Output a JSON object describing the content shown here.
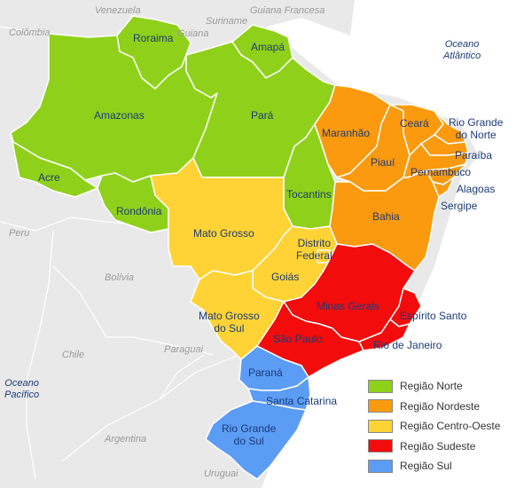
{
  "countries": {
    "venezuela": "Venezuela",
    "suriname": "Suriname",
    "guiana": "Guiana",
    "guiana_francesa": "Guiana Francesa",
    "colombia": "Colômbia",
    "peru": "Peru",
    "bolivia": "Bolívia",
    "chile": "Chile",
    "paraguai": "Paraguai",
    "argentina": "Argentina",
    "uruguai": "Uruguai"
  },
  "oceans": {
    "atlantico_line1": "Oceano",
    "atlantico_line2": "Atlântico",
    "pacifico_line1": "Oceano",
    "pacifico_line2": "Pacífico"
  },
  "states": {
    "roraima": "Roraima",
    "amapa": "Amapá",
    "amazonas": "Amazonas",
    "para": "Pará",
    "acre": "Acre",
    "rondonia": "Rondônia",
    "tocantins": "Tocantins",
    "maranhao": "Maranhão",
    "ceara": "Ceará",
    "rio_grande_do_norte_line1": "Rio Grande",
    "rio_grande_do_norte_line2": "do Norte",
    "piaui": "Piauí",
    "paraiba": "Paraíba",
    "pernambuco": "Pernambuco",
    "alagoas": "Alagoas",
    "sergipe": "Sergipe",
    "bahia": "Bahia",
    "mato_grosso": "Mato Grosso",
    "distrito_federal_line1": "Distrito",
    "distrito_federal_line2": "Federal",
    "goias": "Goiás",
    "mato_grosso_do_sul_line1": "Mato Grosso",
    "mato_grosso_do_sul_line2": "do Sul",
    "minas_gerais": "Minas Gerais",
    "espirito_santo": "Espírito Santo",
    "sao_paulo": "São Paulo",
    "rio_de_janeiro": "Rio de Janeiro",
    "parana": "Paraná",
    "santa_catarina": "Santa Catarina",
    "rio_grande_do_sul_line1": "Rio Grande",
    "rio_grande_do_sul_line2": "do Sul"
  },
  "legend": {
    "items": [
      {
        "label": "Região Norte",
        "color": "#8fd11a"
      },
      {
        "label": "Região Nordeste",
        "color": "#fb9a0e"
      },
      {
        "label": "Região Centro-Oeste",
        "color": "#ffd335"
      },
      {
        "label": "Região Sudeste",
        "color": "#f20c0c"
      },
      {
        "label": "Região Sul",
        "color": "#5b9cf5"
      }
    ]
  },
  "colors": {
    "norte": "#8fd11a",
    "nordeste": "#fb9a0e",
    "centro_oeste": "#ffd335",
    "sudeste": "#f20c0c",
    "sul": "#5b9cf5",
    "land": "#e8e8e8",
    "border": "#ffffff"
  }
}
